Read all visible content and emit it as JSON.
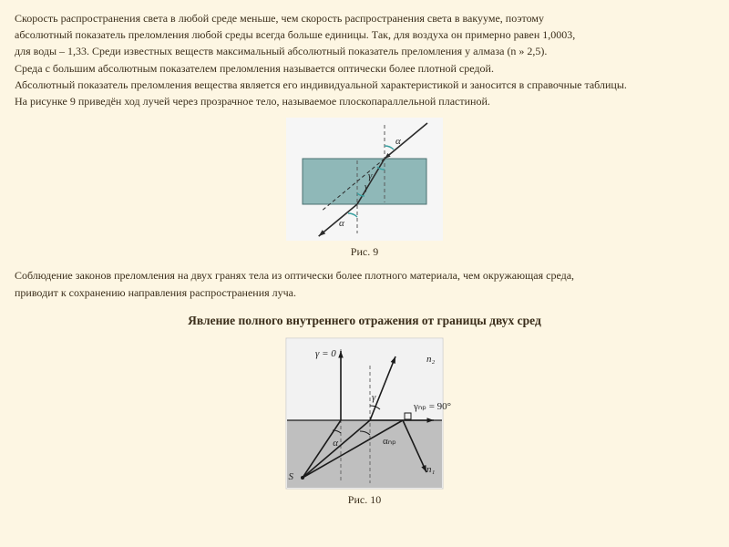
{
  "text": {
    "p1": "Скорость распространения света в любой среде меньше, чем скорость распространения света в вакууме, поэтому",
    "p2": "абсолютный показатель преломления любой среды всегда больше единицы. Так, для воздуха он примерно равен 1,0003,",
    "p3": "для воды – 1,33. Среди известных веществ максимальный абсолютный показатель преломления у алмаза (n » 2,5).",
    "p4": "Среда с большим абсолютным показателем преломления называется оптически более плотной средой.",
    "p5": "Абсолютный показатель преломления вещества является его индивидуальной характеристикой и заносится в справочные таблицы.",
    "p6": "На рисунке 9 приведён ход лучей через прозрачное тело, называемое плоскопараллельной пластиной.",
    "p7": "Соблюдение законов преломления на двух гранях тела из оптически более плотного материала, чем окружающая среда,",
    "p8": "приводит к сохранению направления распространения луча.",
    "section_title": "Явление полного внутреннего отражения от границы двух сред",
    "caption9": "Рис. 9",
    "caption10": "Рис. 10"
  },
  "figures": {
    "fig9": {
      "width": 172,
      "height": 135,
      "bg": "#f6f6f6",
      "plate_fill": "#8fb8b8",
      "plate_stroke": "#4a7070",
      "normal_color": "#5a5a5a",
      "ray_color": "#2b2b2b",
      "angle_arc_color": "#3aa0a0",
      "ray_width": 1.6,
      "dash": "4,3",
      "alpha": "α",
      "gamma": "γ",
      "label_font": 11
    },
    "fig10": {
      "width": 172,
      "height": 165,
      "bg": "#ffffff",
      "border": "#d0d0d0",
      "medium_top": "#f2f2f2",
      "medium_bot": "#bfbfbf",
      "line": "#1a1a1a",
      "normal_color": "#6a6a6a",
      "dash": "4,3",
      "ray_width": 1.6,
      "label_font": 11,
      "labels": {
        "S": "S",
        "alpha": "α",
        "alpha_cr": "αₙₚ",
        "gamma": "γ",
        "gamma0": "γ = 0",
        "gamma_cr": "γₙₚ = 90°",
        "n1": "n₁",
        "n2": "n₂"
      }
    }
  }
}
